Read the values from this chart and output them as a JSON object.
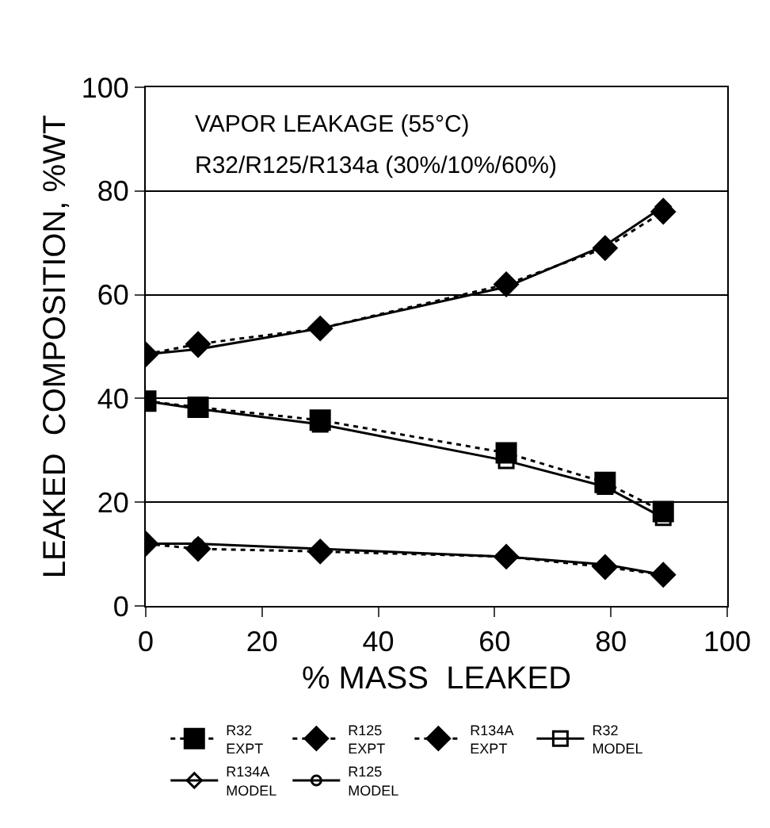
{
  "chart_data": {
    "type": "line",
    "title": "VAPOR LEAKAGE (55°C)",
    "subtitle": "R32/R125/R134a (30%/10%/60%)",
    "xlabel": "% MASS  LEAKED",
    "ylabel": "LEAKED  COMPOSITION, %WT",
    "x": [
      0,
      9,
      30,
      62,
      79,
      89
    ],
    "xlim": [
      0,
      100
    ],
    "xticks": [
      0,
      20,
      40,
      60,
      80,
      100
    ],
    "ylim": [
      0,
      100
    ],
    "yticks": [
      0,
      20,
      40,
      60,
      80,
      100
    ],
    "grid": "y",
    "legend": "bottom",
    "series": [
      {
        "name": "R32\nEXPT",
        "color": "#000000",
        "marker": "square",
        "line_style": "dotted",
        "values": [
          39.5,
          38.3,
          35.8,
          29.5,
          23.8,
          18.2
        ]
      },
      {
        "name": "R125\nEXPT",
        "color": "#000000",
        "marker": "diamond",
        "line_style": "dotted",
        "values": [
          12,
          11,
          10.5,
          9.5,
          7.5,
          6
        ]
      },
      {
        "name": "R134A\nEXPT",
        "color": "#000000",
        "marker": "diamond",
        "line_style": "dotted",
        "values": [
          48.5,
          50.5,
          53.5,
          62,
          69,
          76
        ]
      },
      {
        "name": "R32\nMODEL",
        "color": "#000000",
        "marker": "square-open",
        "line_style": "solid",
        "values": [
          39.5,
          38,
          35,
          28,
          23,
          17
        ]
      },
      {
        "name": "R134A\nMODEL",
        "color": "#000000",
        "marker": "diamond-open",
        "line_style": "solid",
        "values": [
          48.5,
          49.5,
          53.5,
          61.5,
          69.5,
          77
        ]
      },
      {
        "name": "R125\nMODEL",
        "color": "#000000",
        "marker": "circle-open",
        "line_style": "solid",
        "values": [
          12,
          12,
          11,
          9.5,
          8,
          6
        ]
      }
    ]
  }
}
